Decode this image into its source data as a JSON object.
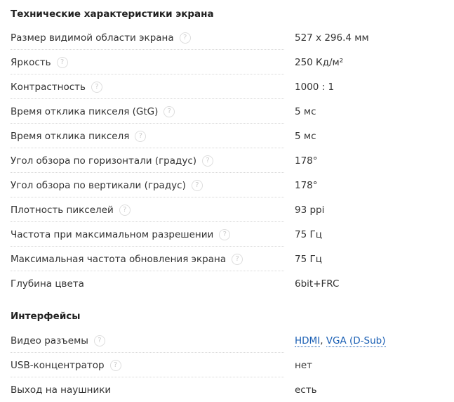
{
  "sections": [
    {
      "title": "Технические характеристики экрана",
      "rows": [
        {
          "label": "Размер видимой области экрана",
          "value": "527 x 296.4 мм",
          "help": true
        },
        {
          "label": "Яркость",
          "value": "250 Кд/м²",
          "help": true
        },
        {
          "label": "Контрастность",
          "value": "1000 : 1",
          "help": true
        },
        {
          "label": "Время отклика пикселя (GtG)",
          "value": "5 мс",
          "help": true
        },
        {
          "label": "Время отклика пикселя",
          "value": "5 мс",
          "help": true
        },
        {
          "label": "Угол обзора по горизонтали (градус)",
          "value": "178°",
          "help": true
        },
        {
          "label": "Угол обзора по вертикали (градус)",
          "value": "178°",
          "help": true
        },
        {
          "label": "Плотность пикселей",
          "value": "93 ppi",
          "help": true
        },
        {
          "label": "Частота при максимальном разрешении",
          "value": "75 Гц",
          "help": true
        },
        {
          "label": "Максимальная частота обновления экрана",
          "value": "75 Гц",
          "help": true
        },
        {
          "label": "Глубина цвета",
          "value": "6bit+FRC",
          "help": false
        }
      ]
    },
    {
      "title": "Интерфейсы",
      "rows": [
        {
          "label": "Видео разъемы",
          "links": [
            "HDMI",
            "VGA (D-Sub)"
          ],
          "separator": ", ",
          "help": true
        },
        {
          "label": "USB-концентратор",
          "value": "нет",
          "help": true
        },
        {
          "label": "Выход на наушники",
          "value": "есть",
          "help": false
        }
      ]
    }
  ],
  "help_icon": "?",
  "link_color": "#1a5fb4"
}
